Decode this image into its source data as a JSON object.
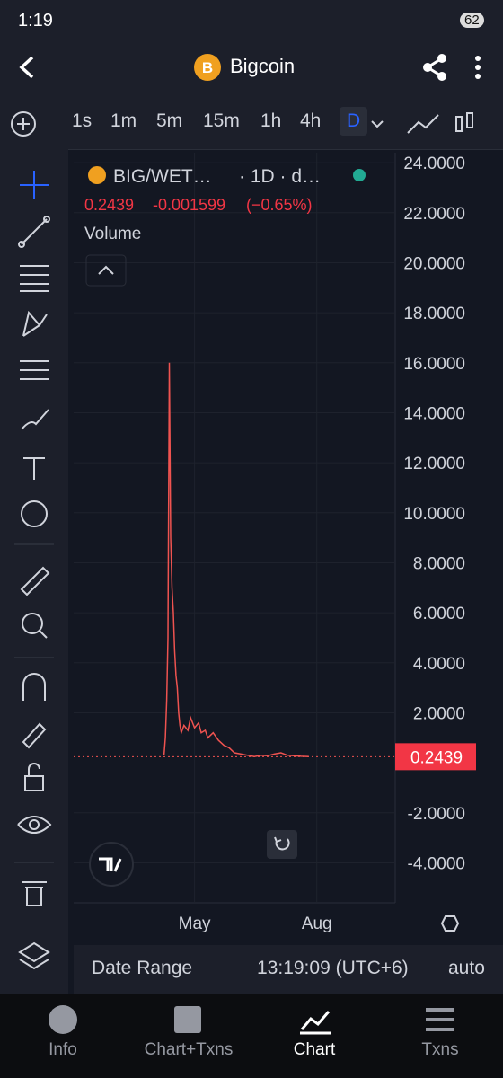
{
  "status_bar": {
    "time": "1:19",
    "battery": "62"
  },
  "header": {
    "title": "Bigcoin"
  },
  "toolbar": {
    "intervals": [
      "1s",
      "1m",
      "5m",
      "15m",
      "1h",
      "4h",
      "D"
    ]
  },
  "chart_data": {
    "type": "line",
    "symbol": "BIG/WET…",
    "interval": "· 1D · d…",
    "last_price": 0.2439,
    "change": -0.001599,
    "change_pct": "(−0.65%)",
    "volume_label": "Volume",
    "color": "#ef5350",
    "x": [
      -23,
      -22,
      -21,
      -20,
      -19,
      -18,
      -17,
      -16,
      -15,
      -14,
      -13,
      -12,
      -11,
      -10,
      -8,
      -5,
      -3,
      0,
      3,
      5,
      8,
      10,
      14,
      18,
      22,
      26,
      30,
      35,
      40,
      45,
      50,
      55,
      60,
      65,
      70,
      75,
      80,
      86
    ],
    "values": [
      0.3,
      1,
      2.5,
      5,
      16,
      9,
      7,
      6,
      4.5,
      3.5,
      3,
      2,
      1.5,
      1.2,
      1.5,
      1.3,
      1.8,
      1.4,
      1.6,
      1.2,
      1.3,
      1.0,
      1.2,
      0.9,
      0.7,
      0.6,
      0.4,
      0.35,
      0.3,
      0.25,
      0.3,
      0.28,
      0.35,
      0.4,
      0.3,
      0.28,
      0.26,
      0.2439
    ],
    "xlim": [
      -91,
      151
    ],
    "xticks": [
      {
        "value": 0,
        "label": "May"
      },
      {
        "value": 92,
        "label": "Aug"
      }
    ],
    "ylim": [
      -5.6,
      24.4
    ],
    "yticks": [
      {
        "value": 24,
        "label": "24.0000"
      },
      {
        "value": 22,
        "label": "22.0000"
      },
      {
        "value": 20,
        "label": "20.0000"
      },
      {
        "value": 18,
        "label": "18.0000"
      },
      {
        "value": 16,
        "label": "16.0000"
      },
      {
        "value": 14,
        "label": "14.0000"
      },
      {
        "value": 12,
        "label": "12.0000"
      },
      {
        "value": 10,
        "label": "10.0000"
      },
      {
        "value": 8,
        "label": "8.0000"
      },
      {
        "value": 6,
        "label": "6.0000"
      },
      {
        "value": 4,
        "label": "4.0000"
      },
      {
        "value": 2,
        "label": "2.0000"
      },
      {
        "value": -2,
        "label": "-2.0000"
      },
      {
        "value": -4,
        "label": "-4.0000"
      }
    ],
    "grid": true
  },
  "bottom_bar": {
    "date_range": "Date Range",
    "time": "13:19:09 (UTC+6)",
    "scale": "auto"
  },
  "tabs": [
    "Info",
    "Chart+Txns",
    "Chart",
    "Txns"
  ]
}
